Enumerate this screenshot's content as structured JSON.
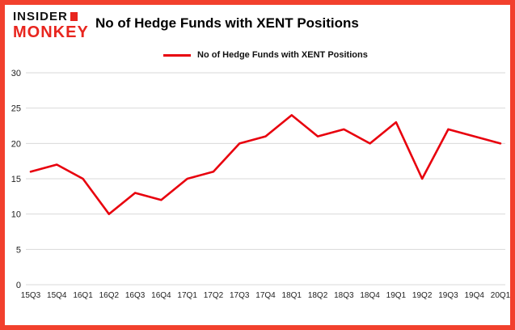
{
  "brand": {
    "line1": "INSIDER",
    "line2": "MONKEY"
  },
  "header": {
    "title": "No of Hedge Funds with XENT Positions"
  },
  "legend": {
    "label": "No of Hedge Funds with XENT Positions"
  },
  "colors": {
    "frame": "#f2402d",
    "line": "#e8000d",
    "grid": "#d9d9d9",
    "axis_text": "#222222",
    "logo_red": "#e8251e"
  },
  "chart_data": {
    "type": "line",
    "title": "No of Hedge Funds with XENT Positions",
    "categories": [
      "15Q3",
      "15Q4",
      "16Q1",
      "16Q2",
      "16Q3",
      "16Q4",
      "17Q1",
      "17Q2",
      "17Q3",
      "17Q4",
      "18Q1",
      "18Q2",
      "18Q3",
      "18Q4",
      "19Q1",
      "19Q2",
      "19Q3",
      "19Q4",
      "20Q1"
    ],
    "series": [
      {
        "name": "No of Hedge Funds with XENT Positions",
        "values": [
          16,
          17,
          15,
          10,
          13,
          12,
          15,
          16,
          20,
          21,
          24,
          21,
          22,
          20,
          23,
          15,
          22,
          21,
          20
        ]
      }
    ],
    "xlabel": "",
    "ylabel": "",
    "ylim": [
      0,
      30
    ],
    "yticks": [
      0,
      5,
      10,
      15,
      20,
      25,
      30
    ],
    "grid": true,
    "legend_position": "top-left"
  }
}
